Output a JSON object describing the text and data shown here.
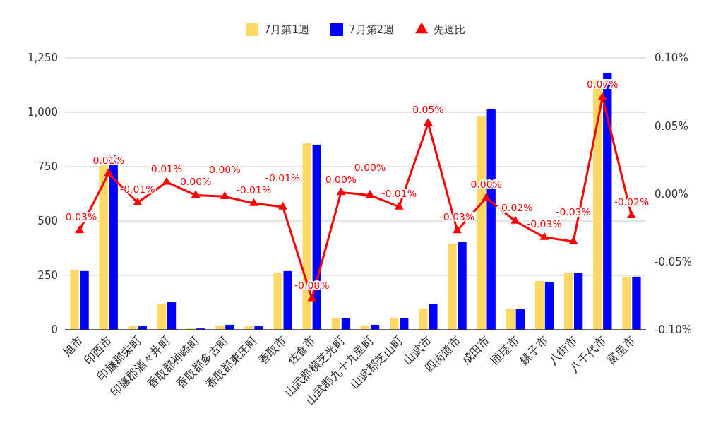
{
  "chart_data": {
    "type": "bar",
    "categories": [
      "旭市",
      "印西市",
      "印旛郡栄町",
      "印旛郡酒々井町",
      "香取郡神崎町",
      "香取郡多古町",
      "香取郡東庄町",
      "香取市",
      "佐倉市",
      "山武郡横芝光町",
      "山武郡九十九里町",
      "山武郡芝山町",
      "山武市",
      "四街道市",
      "成田市",
      "匝瑳市",
      "銚子市",
      "八街市",
      "八千代市",
      "富里市"
    ],
    "series": [
      {
        "name": "7月第1週",
        "color": "#fdd865",
        "values": [
          276,
          779,
          16,
          120,
          6,
          19,
          16,
          263,
          857,
          55,
          20,
          55,
          97,
          396,
          984,
          97,
          224,
          263,
          1146,
          244
        ]
      },
      {
        "name": "7月第2週",
        "color": "#0000ff",
        "values": [
          270,
          805,
          16,
          127,
          6,
          23,
          16,
          270,
          851,
          55,
          23,
          55,
          120,
          403,
          1013,
          94,
          221,
          260,
          1182,
          244
        ]
      },
      {
        "name": "先週比",
        "type": "line",
        "axis": "y2",
        "color": "#ff0000",
        "marker": "triangle",
        "values": [
          -0.027,
          0.015,
          -0.0065,
          0.0086,
          -0.001,
          -0.002,
          -0.007,
          -0.0096,
          -0.077,
          0.001,
          -0.001,
          -0.0096,
          0.052,
          -0.027,
          -0.003,
          -0.02,
          -0.032,
          -0.035,
          0.071,
          -0.016
        ],
        "value_labels": [
          "-0.03%",
          "0.01%",
          "-0.01%",
          "0.01%",
          "0.00%",
          "0.00%",
          "-0.01%",
          "-0.01%",
          "-0.08%",
          "0.00%",
          "0.00%",
          "-0.01%",
          "0.05%",
          "-0.03%",
          "0.00%",
          "-0.02%",
          "-0.03%",
          "-0.03%",
          "0.07%",
          "-0.02%"
        ]
      }
    ],
    "ylim": [
      0,
      1250
    ],
    "yticks": [
      0,
      250,
      500,
      750,
      {
        "value": 1000,
        "label": "1,000"
      },
      {
        "value": 1250,
        "label": "1,250"
      }
    ],
    "y2lim": [
      -0.1,
      0.1
    ],
    "y2ticks": [
      {
        "value": -0.1,
        "label": "-0.10%"
      },
      {
        "value": -0.05,
        "label": "-0.05%"
      },
      {
        "value": 0,
        "label": "0.00%"
      },
      {
        "value": 0.05,
        "label": "0.05%"
      },
      {
        "value": 0.1,
        "label": "0.10%"
      }
    ],
    "grid": "y",
    "legend": "top"
  }
}
